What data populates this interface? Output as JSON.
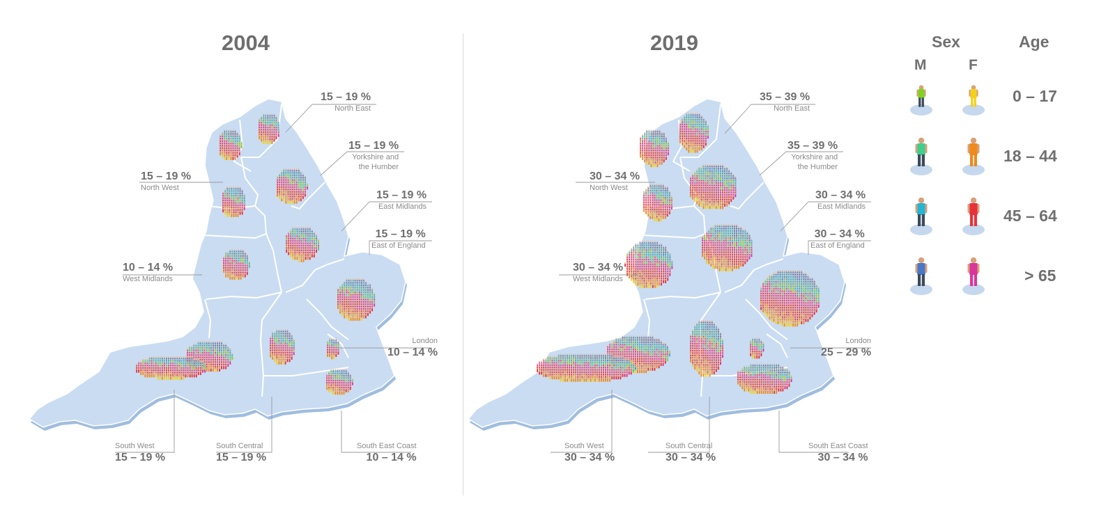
{
  "panels": [
    {
      "year": "2004",
      "regions": {
        "north_east": {
          "name": "North East",
          "pct": "15 – 19 %"
        },
        "yorkshire": {
          "name_line1": "Yorkshire and",
          "name_line2": "the Humber",
          "pct": "15 – 19 %"
        },
        "north_west": {
          "name": "North West",
          "pct": "15 – 19 %"
        },
        "east_midlands": {
          "name": "East Midlands",
          "pct": "15 – 19 %"
        },
        "east_of_england": {
          "name": "East of England",
          "pct": "15 – 19 %"
        },
        "west_midlands": {
          "name": "West Midlands",
          "pct": "10 – 14 %"
        },
        "london": {
          "name": "London",
          "pct": "10 – 14 %"
        },
        "south_west": {
          "name": "South West",
          "pct": "15 – 19 %"
        },
        "south_central": {
          "name": "South Central",
          "pct": "15 – 19 %"
        },
        "south_east_coast": {
          "name": "South East Coast",
          "pct": "10 – 14 %"
        }
      }
    },
    {
      "year": "2019",
      "regions": {
        "north_east": {
          "name": "North East",
          "pct": "35 – 39 %"
        },
        "yorkshire": {
          "name_line1": "Yorkshire and",
          "name_line2": "the Humber",
          "pct": "35 – 39 %"
        },
        "north_west": {
          "name": "North West",
          "pct": "30 – 34 %"
        },
        "east_midlands": {
          "name": "East Midlands",
          "pct": "30 – 34 %"
        },
        "east_of_england": {
          "name": "East of England",
          "pct": "30 – 34 %"
        },
        "west_midlands": {
          "name": "West Midlands",
          "pct": "30 – 34 %"
        },
        "london": {
          "name": "London",
          "pct": "25 – 29 %"
        },
        "south_west": {
          "name": "South West",
          "pct": "30 – 34 %"
        },
        "south_central": {
          "name": "South Central",
          "pct": "30 – 34 %"
        },
        "south_east_coast": {
          "name": "South East Coast",
          "pct": "30 – 34 %"
        }
      }
    }
  ],
  "legend": {
    "sex_title": "Sex",
    "age_title": "Age",
    "male": "M",
    "female": "F",
    "ages": [
      "0 – 17",
      "18 – 44",
      "45 – 64",
      "> 65"
    ],
    "colors": {
      "map_fill": "#c9dcf2",
      "map_border": "#ffffff",
      "group_0_17_m": "#7ed321",
      "group_0_17_f": "#f2d21b",
      "group_18_44_m": "#3fcf8e",
      "group_18_44_f": "#ef8a1c",
      "group_45_64_m": "#22b5d4",
      "group_45_64_f": "#e8323a",
      "group_65_m": "#4a78c8",
      "group_65_f": "#d9369a"
    }
  }
}
